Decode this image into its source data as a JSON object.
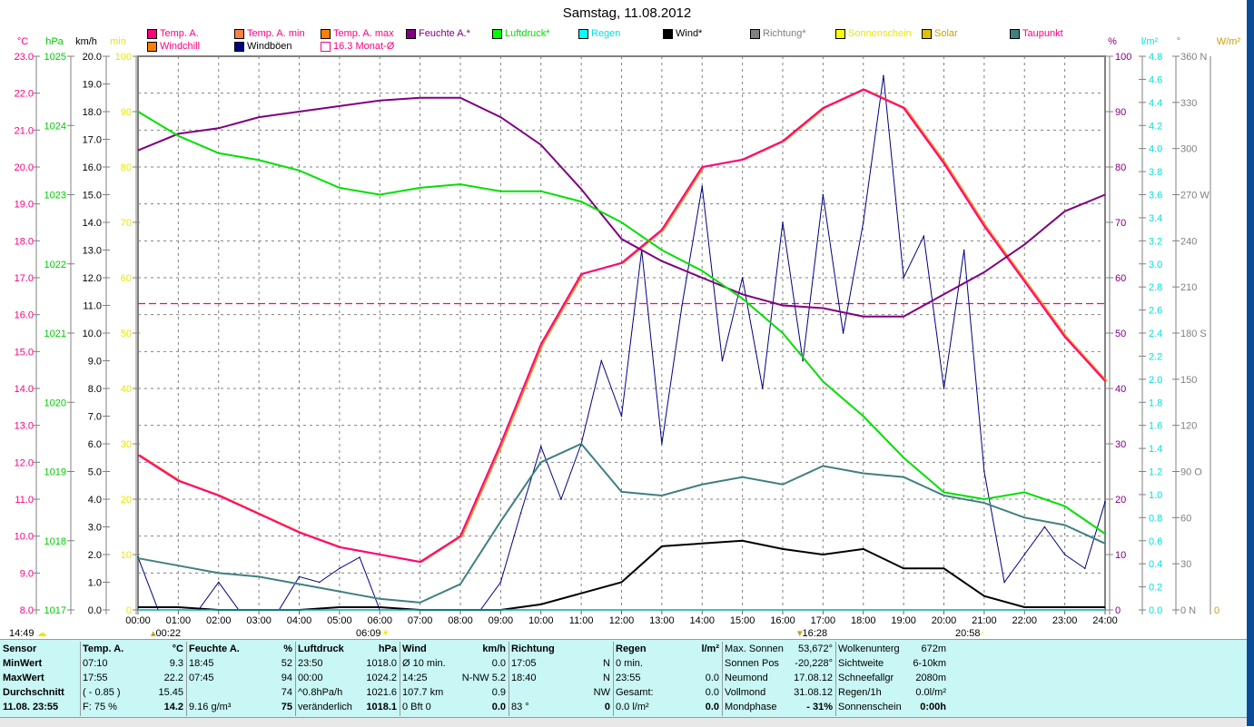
{
  "title": "Samstag, 11.08.2012",
  "units_left": [
    "°C",
    "hPa",
    "km/h",
    "min"
  ],
  "units_right": [
    "%",
    "l/m²",
    "°",
    "W/m²"
  ],
  "legend": [
    {
      "label": "Temp. A.",
      "color": "#ff0080",
      "text_color": "#ff0080"
    },
    {
      "label": "Temp. A. min",
      "color": "#ff8040",
      "text_color": "#ff0080"
    },
    {
      "label": "Temp. A. max",
      "color": "#ff8000",
      "text_color": "#ff0080"
    },
    {
      "label": "Feuchte A.*",
      "color": "#800080",
      "text_color": "#800080"
    },
    {
      "label": "Luftdruck*",
      "color": "#00ff00",
      "text_color": "#00dd00"
    },
    {
      "label": "Regen",
      "color": "#00ffff",
      "text_color": "#00e0e0"
    },
    {
      "label": "Wind*",
      "color": "#000000",
      "text_color": "#000000"
    },
    {
      "label": "Richtung*",
      "color": "#808080",
      "text_color": "#808080"
    },
    {
      "label": "Sonnenschein",
      "color": "#ffff00",
      "text_color": "#e8e800"
    },
    {
      "label": "Solar",
      "color": "#e0c000",
      "text_color": "#d0a000"
    },
    {
      "label": "Taupunkt",
      "color": "#408080",
      "text_color": "#ff0080"
    },
    {
      "label": "Windchill",
      "color": "#ff8000",
      "text_color": "#ff0080"
    },
    {
      "label": "Windböen",
      "color": "#000080",
      "text_color": "#000000"
    },
    {
      "label": "16.3 Monat-Ø",
      "color": "#ff0080",
      "text_color": "#ff0080"
    }
  ],
  "markers": {
    "cloud_time": "14:49",
    "moonrise": "00:22",
    "sunrise": "06:09",
    "moonset": "16:28",
    "sunset": "20:58"
  },
  "chart_data": {
    "type": "line",
    "title": "Samstag, 11.08.2012",
    "x_ticks": [
      "00:00",
      "01:00",
      "02:00",
      "03:00",
      "04:00",
      "05:00",
      "06:00",
      "07:00",
      "08:00",
      "09:00",
      "10:00",
      "11:00",
      "12:00",
      "13:00",
      "14:00",
      "15:00",
      "16:00",
      "17:00",
      "18:00",
      "19:00",
      "20:00",
      "21:00",
      "22:00",
      "23:00",
      "24:00"
    ],
    "axes": {
      "temp": {
        "unit": "°C",
        "range": [
          8.0,
          23.0
        ],
        "step": 1.0,
        "color": "#ff0080"
      },
      "pressure": {
        "unit": "hPa",
        "range": [
          1017,
          1025
        ],
        "step": 1,
        "color": "#00cc00"
      },
      "wind": {
        "unit": "km/h",
        "range": [
          0.0,
          20.0
        ],
        "step": 1.0,
        "color": "#000000"
      },
      "minutes": {
        "unit": "min",
        "range": [
          0,
          100
        ],
        "step": 10,
        "color": "#e8e800"
      },
      "humidity": {
        "unit": "%",
        "range": [
          0,
          100
        ],
        "step": 10,
        "color": "#800080"
      },
      "rain": {
        "unit": "l/m²",
        "range": [
          0.0,
          4.8
        ],
        "step": 0.2,
        "color": "#00e0e0"
      },
      "direction": {
        "unit": "°",
        "range": [
          0,
          360
        ],
        "step": 30,
        "labels": {
          "0": "N",
          "90": "O",
          "180": "S",
          "270": "W",
          "360": "N"
        },
        "color": "#808080"
      },
      "solar": {
        "unit": "W/m²",
        "range": [
          0,
          0
        ],
        "color": "#d0a000"
      }
    },
    "monthly_avg_temp": 16.3,
    "hours": [
      0,
      1,
      2,
      3,
      4,
      5,
      6,
      7,
      8,
      9,
      10,
      11,
      12,
      13,
      14,
      15,
      16,
      17,
      18,
      19,
      20,
      21,
      22,
      23,
      24
    ],
    "series": [
      {
        "name": "Temp. A.",
        "axis": "temp",
        "color": "#ff0080",
        "values": [
          12.2,
          11.5,
          11.1,
          10.6,
          10.1,
          9.7,
          9.5,
          9.3,
          10.0,
          12.5,
          15.2,
          17.1,
          17.4,
          18.3,
          20.0,
          20.2,
          20.7,
          21.6,
          22.1,
          21.6,
          20.1,
          18.4,
          16.9,
          15.4,
          14.2
        ]
      },
      {
        "name": "Feuchte A.*",
        "axis": "humidity",
        "color": "#800080",
        "values": [
          83,
          86,
          87,
          89,
          90,
          91,
          92,
          92.5,
          92.5,
          89,
          84,
          76,
          67,
          63,
          60,
          57,
          55,
          54.5,
          53,
          53,
          57,
          61,
          66,
          72,
          75
        ]
      },
      {
        "name": "Luftdruck*",
        "axis": "pressure",
        "color": "#00e000",
        "values": [
          1024.2,
          1023.85,
          1023.6,
          1023.5,
          1023.35,
          1023.1,
          1023.0,
          1023.1,
          1023.15,
          1023.05,
          1023.05,
          1022.9,
          1022.6,
          1022.2,
          1021.9,
          1021.5,
          1021.0,
          1020.3,
          1019.8,
          1019.2,
          1018.7,
          1018.6,
          1018.7,
          1018.5,
          1018.1
        ]
      },
      {
        "name": "Taupunkt",
        "axis": "temp",
        "color": "#408080",
        "values": [
          9.4,
          9.2,
          9.0,
          8.9,
          8.7,
          8.5,
          8.3,
          8.2,
          8.7,
          10.4,
          12.0,
          12.5,
          11.2,
          11.1,
          11.4,
          11.6,
          11.4,
          11.9,
          11.7,
          11.6,
          11.1,
          10.9,
          10.5,
          10.3,
          9.8
        ]
      },
      {
        "name": "Wind*",
        "axis": "wind",
        "color": "#000000",
        "values": [
          0.1,
          0.1,
          0.0,
          0.0,
          0.0,
          0.1,
          0.1,
          0.0,
          0.0,
          0.0,
          0.2,
          0.6,
          1.0,
          2.3,
          2.4,
          2.5,
          2.2,
          2.0,
          2.2,
          1.5,
          1.5,
          0.5,
          0.1,
          0.1,
          0.1
        ]
      },
      {
        "name": "Regen",
        "axis": "rain",
        "color": "#00ffff",
        "values": [
          0,
          0,
          0,
          0,
          0,
          0,
          0,
          0,
          0,
          0,
          0,
          0,
          0,
          0,
          0,
          0,
          0,
          0,
          0,
          0,
          0,
          0,
          0,
          0,
          0
        ]
      }
    ],
    "gusts": {
      "name": "Windböen",
      "axis": "wind",
      "color": "#000080",
      "hours_step": 0.5,
      "values": [
        1.9,
        0,
        0,
        0,
        1.0,
        0,
        0,
        0,
        1.2,
        1.0,
        1.5,
        1.9,
        0,
        0,
        0,
        0,
        0,
        0,
        1.0,
        3.5,
        5.9,
        4.0,
        6.0,
        9.0,
        7.0,
        13.0,
        6.0,
        11.0,
        15.3,
        9.0,
        12.0,
        8.0,
        14.0,
        9.0,
        15.0,
        10.0,
        14.0,
        19.3,
        12.0,
        13.5,
        8.0,
        13.0,
        5.0,
        1.0,
        2.0,
        3.0,
        2.0,
        1.5,
        3.9
      ]
    }
  },
  "table": {
    "columns": [
      {
        "rows": [
          [
            "Sensor",
            ""
          ],
          [
            "MinWert",
            ""
          ],
          [
            "MaxWert",
            ""
          ],
          [
            "Durchschnitt",
            ""
          ],
          [
            "11.08. 23:55",
            ""
          ]
        ],
        "bold_col0": true
      },
      {
        "rows": [
          [
            "Temp. A.",
            "°C"
          ],
          [
            "07:10",
            "9.3"
          ],
          [
            "17:55",
            "22.2"
          ],
          [
            "( - 0.85 )",
            "15.45"
          ],
          [
            "F: 75 %",
            "14.2"
          ]
        ]
      },
      {
        "rows": [
          [
            "Feuchte A.",
            "%"
          ],
          [
            "18:45",
            "52"
          ],
          [
            "07:45",
            "94"
          ],
          [
            "",
            "74"
          ],
          [
            "9.16 g/m³",
            "75"
          ]
        ]
      },
      {
        "rows": [
          [
            "Luftdruck",
            "hPa"
          ],
          [
            "23:50",
            "1018.0"
          ],
          [
            "00:00",
            "1024.2"
          ],
          [
            "^0.8hPa/h",
            "1021.6"
          ],
          [
            "veränderlich",
            "1018.1"
          ]
        ]
      },
      {
        "rows": [
          [
            "Wind",
            "km/h"
          ],
          [
            "Ø 10 min.",
            "0.0"
          ],
          [
            "14:25",
            "N-NW 5.2"
          ],
          [
            "107.7 km",
            "0.9"
          ],
          [
            "0 Bft 0",
            "0.0"
          ]
        ]
      },
      {
        "rows": [
          [
            "Richtung",
            ""
          ],
          [
            "17:05",
            "N"
          ],
          [
            "18:40",
            "N"
          ],
          [
            "",
            "NW"
          ],
          [
            "83 °",
            "0"
          ]
        ]
      },
      {
        "rows": [
          [
            "Regen",
            "l/m²"
          ],
          [
            "0 min.",
            ""
          ],
          [
            "23:55",
            "0.0"
          ],
          [
            "Gesamt:",
            "0.0"
          ],
          [
            "0.0 l/m²",
            "0.0"
          ]
        ]
      },
      {
        "rows": [
          [
            "Max. Sonnen",
            "53,672°"
          ],
          [
            "Sonnen Pos",
            "-20,228°"
          ],
          [
            "Neumond",
            "17.08.12"
          ],
          [
            "Vollmond",
            "31.08.12"
          ],
          [
            "Mondphase",
            "- 31%"
          ]
        ]
      },
      {
        "rows": [
          [
            "Wolkenunterg",
            "672m"
          ],
          [
            "Sichtweite",
            "6-10km"
          ],
          [
            "Schneefallgr",
            "2080m"
          ],
          [
            "Regen/1h",
            "0.0l/m²"
          ],
          [
            "Sonnenschein",
            "0:00h"
          ]
        ]
      }
    ]
  }
}
